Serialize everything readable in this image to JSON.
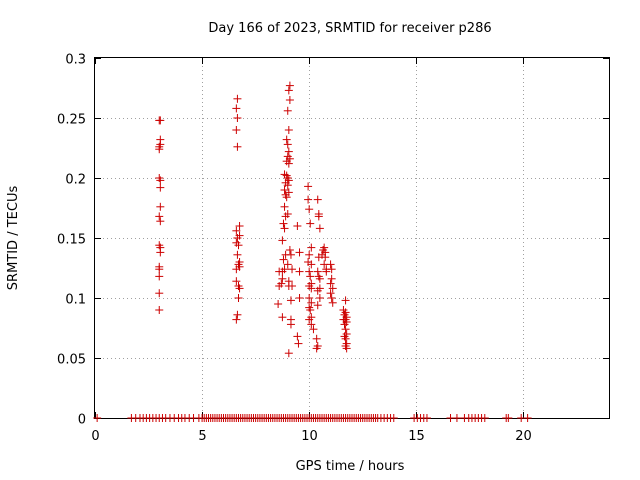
{
  "chart_data": {
    "type": "scatter",
    "title": "Day 166 of 2023, SRMTID for receiver p286",
    "xlabel": "GPS time / hours",
    "ylabel": "SRMTID / TECUs",
    "xlim": [
      0,
      24
    ],
    "ylim": [
      0,
      0.3
    ],
    "x_ticks": [
      0,
      5,
      10,
      15,
      20
    ],
    "x_tick_labels": [
      "0",
      "5",
      "10",
      "15",
      "20"
    ],
    "y_ticks": [
      0,
      0.05,
      0.1,
      0.15,
      0.2,
      0.25,
      0.3
    ],
    "y_tick_labels": [
      "0",
      "0.05",
      "0.1",
      "0.15",
      "0.2",
      "0.25",
      "0.3"
    ],
    "grid": true,
    "marker": "+",
    "series": [
      {
        "name": "SRMTID",
        "color": "#cc0000",
        "points": [
          [
            3.0,
            0.248
          ],
          [
            3.05,
            0.248
          ],
          [
            3.05,
            0.232
          ],
          [
            3.0,
            0.226
          ],
          [
            3.0,
            0.224
          ],
          [
            3.05,
            0.228
          ],
          [
            3.0,
            0.2
          ],
          [
            3.05,
            0.198
          ],
          [
            3.05,
            0.192
          ],
          [
            3.05,
            0.176
          ],
          [
            3.0,
            0.168
          ],
          [
            3.05,
            0.164
          ],
          [
            3.0,
            0.144
          ],
          [
            3.05,
            0.142
          ],
          [
            3.05,
            0.138
          ],
          [
            3.0,
            0.126
          ],
          [
            3.0,
            0.124
          ],
          [
            3.0,
            0.118
          ],
          [
            3.0,
            0.104
          ],
          [
            3.0,
            0.09
          ],
          [
            6.65,
            0.266
          ],
          [
            6.6,
            0.258
          ],
          [
            6.65,
            0.25
          ],
          [
            6.6,
            0.24
          ],
          [
            6.65,
            0.226
          ],
          [
            6.6,
            0.156
          ],
          [
            6.65,
            0.15
          ],
          [
            6.6,
            0.146
          ],
          [
            6.75,
            0.16
          ],
          [
            6.75,
            0.152
          ],
          [
            6.7,
            0.144
          ],
          [
            6.65,
            0.136
          ],
          [
            6.75,
            0.13
          ],
          [
            6.7,
            0.128
          ],
          [
            6.6,
            0.124
          ],
          [
            6.75,
            0.126
          ],
          [
            6.6,
            0.114
          ],
          [
            6.7,
            0.11
          ],
          [
            6.75,
            0.108
          ],
          [
            6.7,
            0.1
          ],
          [
            6.65,
            0.086
          ],
          [
            6.6,
            0.082
          ],
          [
            9.1,
            0.277
          ],
          [
            9.05,
            0.273
          ],
          [
            9.1,
            0.265
          ],
          [
            9.0,
            0.256
          ],
          [
            9.05,
            0.24
          ],
          [
            8.95,
            0.232
          ],
          [
            9.0,
            0.228
          ],
          [
            9.05,
            0.222
          ],
          [
            9.0,
            0.218
          ],
          [
            9.1,
            0.216
          ],
          [
            8.95,
            0.214
          ],
          [
            9.05,
            0.212
          ],
          [
            8.85,
            0.203
          ],
          [
            8.95,
            0.202
          ],
          [
            9.0,
            0.2
          ],
          [
            9.05,
            0.198
          ],
          [
            8.9,
            0.196
          ],
          [
            9.0,
            0.194
          ],
          [
            8.85,
            0.19
          ],
          [
            9.05,
            0.188
          ],
          [
            8.9,
            0.186
          ],
          [
            8.95,
            0.184
          ],
          [
            8.85,
            0.176
          ],
          [
            8.9,
            0.168
          ],
          [
            9.0,
            0.17
          ],
          [
            8.8,
            0.162
          ],
          [
            8.85,
            0.158
          ],
          [
            8.75,
            0.148
          ],
          [
            9.1,
            0.14
          ],
          [
            9.15,
            0.136
          ],
          [
            8.9,
            0.136
          ],
          [
            9.0,
            0.128
          ],
          [
            8.8,
            0.132
          ],
          [
            9.2,
            0.124
          ],
          [
            8.85,
            0.124
          ],
          [
            8.75,
            0.122
          ],
          [
            8.6,
            0.122
          ],
          [
            8.75,
            0.116
          ],
          [
            8.7,
            0.112
          ],
          [
            8.6,
            0.11
          ],
          [
            9.05,
            0.114
          ],
          [
            9.2,
            0.11
          ],
          [
            9.05,
            0.11
          ],
          [
            9.15,
            0.098
          ],
          [
            8.55,
            0.095
          ],
          [
            8.75,
            0.084
          ],
          [
            9.15,
            0.082
          ],
          [
            9.15,
            0.078
          ],
          [
            9.05,
            0.054
          ],
          [
            9.45,
            0.16
          ],
          [
            9.55,
            0.138
          ],
          [
            9.55,
            0.122
          ],
          [
            9.55,
            0.1
          ],
          [
            9.45,
            0.068
          ],
          [
            9.5,
            0.062
          ],
          [
            9.95,
            0.193
          ],
          [
            9.95,
            0.182
          ],
          [
            10.0,
            0.174
          ],
          [
            10.05,
            0.162
          ],
          [
            10.1,
            0.142
          ],
          [
            10.0,
            0.136
          ],
          [
            9.95,
            0.13
          ],
          [
            10.1,
            0.128
          ],
          [
            10.0,
            0.122
          ],
          [
            10.05,
            0.118
          ],
          [
            10.1,
            0.112
          ],
          [
            10.0,
            0.11
          ],
          [
            10.1,
            0.108
          ],
          [
            10.0,
            0.1
          ],
          [
            10.1,
            0.096
          ],
          [
            10.0,
            0.092
          ],
          [
            10.05,
            0.09
          ],
          [
            10.1,
            0.084
          ],
          [
            10.0,
            0.082
          ],
          [
            10.1,
            0.078
          ],
          [
            10.2,
            0.074
          ],
          [
            10.4,
            0.182
          ],
          [
            10.45,
            0.17
          ],
          [
            10.45,
            0.168
          ],
          [
            10.5,
            0.158
          ],
          [
            10.45,
            0.134
          ],
          [
            10.4,
            0.122
          ],
          [
            10.45,
            0.118
          ],
          [
            10.5,
            0.116
          ],
          [
            10.5,
            0.108
          ],
          [
            10.4,
            0.106
          ],
          [
            10.5,
            0.1
          ],
          [
            10.4,
            0.094
          ],
          [
            10.35,
            0.066
          ],
          [
            10.4,
            0.06
          ],
          [
            10.35,
            0.058
          ],
          [
            10.7,
            0.142
          ],
          [
            10.65,
            0.14
          ],
          [
            10.75,
            0.138
          ],
          [
            10.6,
            0.136
          ],
          [
            10.75,
            0.134
          ],
          [
            10.7,
            0.128
          ],
          [
            10.8,
            0.124
          ],
          [
            10.8,
            0.122
          ],
          [
            11.0,
            0.128
          ],
          [
            11.05,
            0.124
          ],
          [
            11.05,
            0.116
          ],
          [
            11.0,
            0.112
          ],
          [
            11.1,
            0.108
          ],
          [
            11.0,
            0.104
          ],
          [
            11.05,
            0.1
          ],
          [
            11.1,
            0.096
          ],
          [
            11.7,
            0.098
          ],
          [
            11.6,
            0.09
          ],
          [
            11.7,
            0.088
          ],
          [
            11.65,
            0.086
          ],
          [
            11.75,
            0.084
          ],
          [
            11.6,
            0.082
          ],
          [
            11.7,
            0.082
          ],
          [
            11.75,
            0.08
          ],
          [
            11.65,
            0.078
          ],
          [
            11.7,
            0.074
          ],
          [
            11.75,
            0.07
          ],
          [
            11.65,
            0.068
          ],
          [
            11.7,
            0.066
          ],
          [
            11.75,
            0.062
          ],
          [
            11.7,
            0.06
          ],
          [
            11.75,
            0.058
          ]
        ],
        "baseline_times": [
          0.1,
          1.7,
          1.9,
          2.1,
          2.25,
          2.4,
          2.55,
          2.7,
          2.85,
          3.0,
          3.15,
          3.3,
          3.5,
          3.7,
          3.9,
          4.05,
          4.2,
          4.4,
          4.6,
          4.85,
          5.0,
          5.1,
          5.2,
          5.3,
          5.4,
          5.5,
          5.6,
          5.7,
          5.8,
          5.9,
          6.0,
          6.1,
          6.2,
          6.3,
          6.4,
          6.5,
          6.6,
          6.7,
          6.8,
          6.9,
          7.0,
          7.1,
          7.2,
          7.3,
          7.4,
          7.5,
          7.6,
          7.7,
          7.8,
          7.9,
          8.0,
          8.1,
          8.2,
          8.3,
          8.4,
          8.5,
          8.6,
          8.7,
          8.8,
          8.9,
          9.0,
          9.1,
          9.2,
          9.3,
          9.4,
          9.5,
          9.6,
          9.7,
          9.8,
          9.9,
          10.0,
          10.1,
          10.2,
          10.3,
          10.4,
          10.5,
          10.6,
          10.7,
          10.8,
          10.9,
          11.0,
          11.1,
          11.2,
          11.3,
          11.4,
          11.5,
          11.6,
          11.7,
          11.8,
          11.9,
          12.0,
          12.1,
          12.2,
          12.3,
          12.4,
          12.5,
          12.6,
          12.7,
          12.8,
          12.9,
          13.0,
          13.1,
          13.2,
          13.35,
          13.5,
          13.65,
          13.8,
          13.95,
          14.9,
          15.05,
          15.2,
          15.35,
          15.5,
          16.6,
          16.9,
          17.25,
          17.45,
          17.6,
          17.75,
          17.9,
          18.05,
          18.2,
          19.2,
          19.3,
          19.9,
          20.2
        ]
      }
    ]
  }
}
